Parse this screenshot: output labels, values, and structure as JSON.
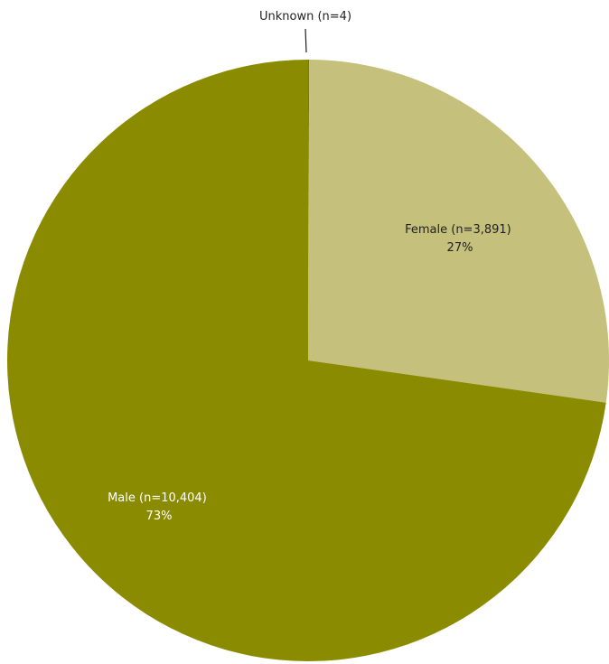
{
  "chart_data": {
    "type": "pie",
    "slices": [
      {
        "label": "Unknown (n=4)",
        "value": 4,
        "percent": "",
        "color": "#1f1f1f"
      },
      {
        "label": "Female (n=3,891)",
        "value": 3891,
        "percent": "27%",
        "color": "#c5c07b"
      },
      {
        "label": "Male (n=10,404)",
        "value": 10404,
        "percent": "73%",
        "color": "#8b8b00"
      }
    ]
  }
}
